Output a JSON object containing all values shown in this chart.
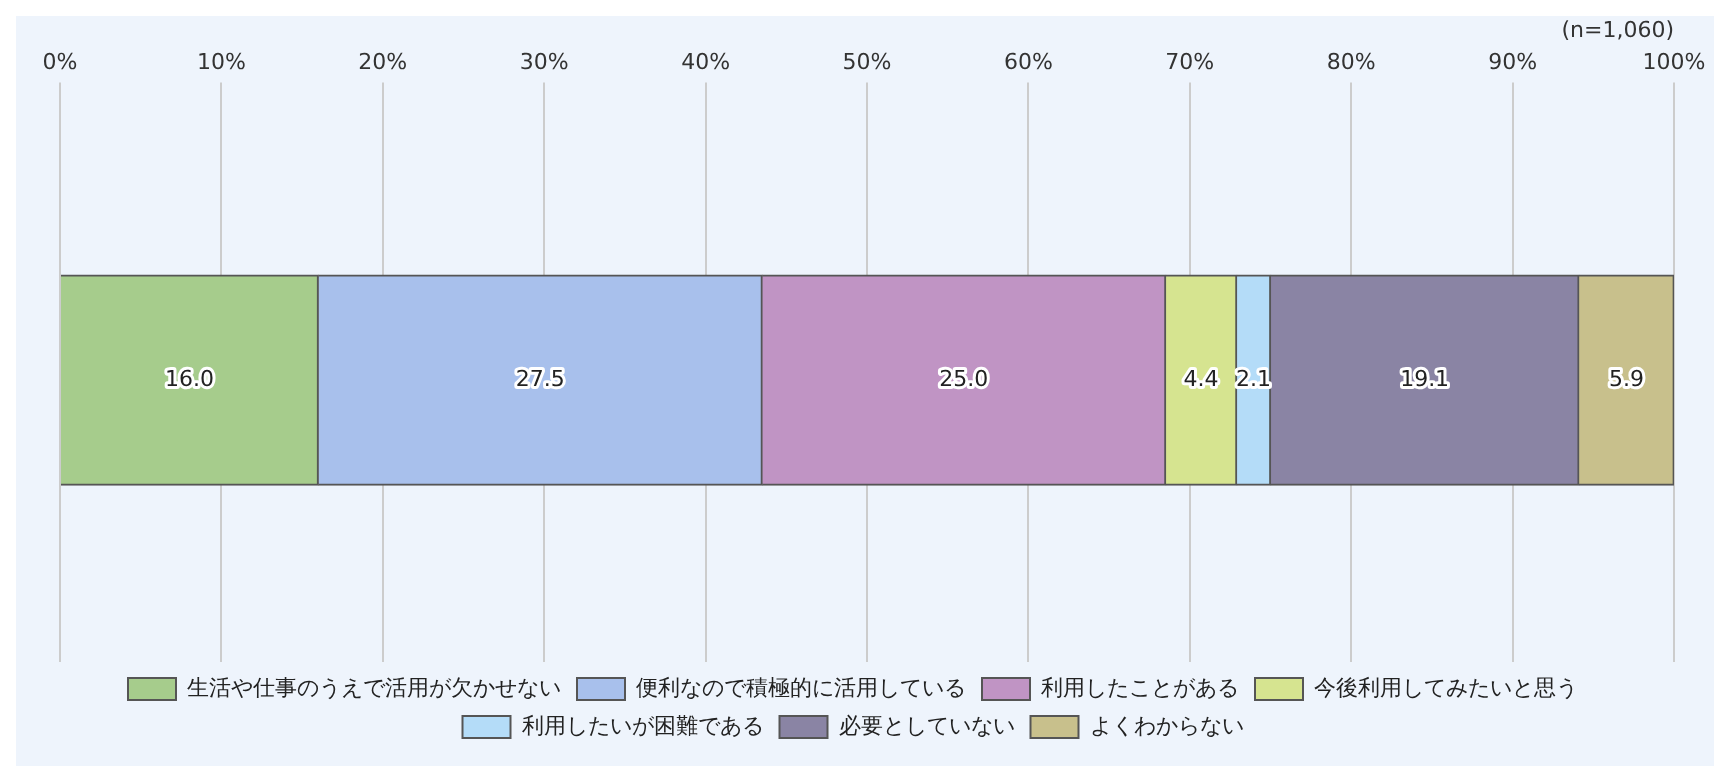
{
  "chart_data": {
    "type": "bar",
    "orientation": "horizontal",
    "stacked": true,
    "categories": [
      null
    ],
    "series": [
      {
        "name": "生活や仕事のうえで活用が欠かせない",
        "color": "#a6cc8c",
        "values": [
          16.0
        ],
        "value_labels": [
          "16.0"
        ]
      },
      {
        "name": "便利なので積極的に活用している",
        "color": "#a8c0ec",
        "values": [
          27.5
        ],
        "value_labels": [
          "27.5"
        ]
      },
      {
        "name": "利用したことがある",
        "color": "#c094c4",
        "values": [
          25.0
        ],
        "value_labels": [
          "25.0"
        ]
      },
      {
        "name": "今後利用してみたいと思う",
        "color": "#d6e490",
        "values": [
          4.4
        ],
        "value_labels": [
          "4.4"
        ]
      },
      {
        "name": "利用したいが困難である",
        "color": "#b4dcf8",
        "values": [
          2.1
        ],
        "value_labels": [
          "2.1"
        ]
      },
      {
        "name": "必要としていない",
        "color": "#8a84a4",
        "values": [
          19.1
        ],
        "value_labels": [
          "19.1"
        ]
      },
      {
        "name": "よくわからない",
        "color": "#c8c08c",
        "values": [
          5.9
        ],
        "value_labels": [
          "5.9"
        ]
      }
    ],
    "xlim": [
      0,
      100
    ],
    "xticks": [
      {
        "value": 0,
        "label": "0%"
      },
      {
        "value": 10,
        "label": "10%"
      },
      {
        "value": 20,
        "label": "20%"
      },
      {
        "value": 30,
        "label": "30%"
      },
      {
        "value": 40,
        "label": "40%"
      },
      {
        "value": 50,
        "label": "50%"
      },
      {
        "value": 60,
        "label": "60%"
      },
      {
        "value": 70,
        "label": "70%"
      },
      {
        "value": 80,
        "label": "80%"
      },
      {
        "value": 90,
        "label": "90%"
      },
      {
        "value": 100,
        "label": "100%"
      }
    ],
    "grid": "x",
    "legend": "bottom",
    "annotations": [
      "(n=1,060)"
    ]
  }
}
